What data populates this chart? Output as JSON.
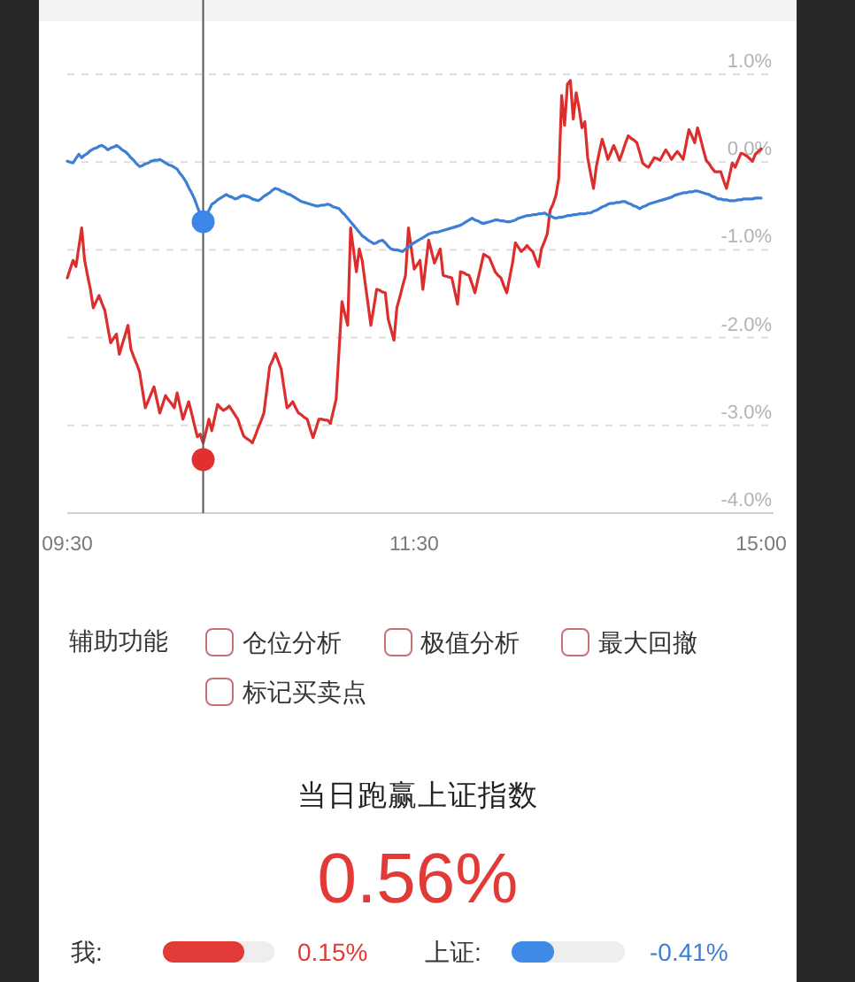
{
  "chart_data": [
    {
      "type": "line",
      "categories": [
        "09:30",
        null,
        null,
        null,
        null,
        null,
        null,
        null,
        null,
        null,
        null,
        null,
        null,
        null,
        null,
        null,
        null,
        null,
        null,
        null,
        null,
        null,
        null,
        null,
        null,
        null,
        null,
        null,
        null,
        null,
        null,
        null,
        null,
        null,
        null,
        null,
        null,
        null,
        null,
        null,
        null,
        null,
        null,
        null,
        null,
        null,
        null,
        null,
        null,
        null,
        null,
        null,
        null,
        null,
        null,
        null,
        null,
        null,
        null,
        null,
        null,
        null,
        null,
        null,
        null,
        null,
        null,
        null,
        null,
        null,
        null,
        null,
        null,
        null,
        null,
        null,
        null,
        null,
        null,
        null,
        null,
        null,
        null,
        null,
        null,
        null,
        null,
        null,
        null,
        null,
        null,
        null,
        null,
        null,
        null,
        null,
        null,
        null,
        null,
        null,
        null,
        null,
        null,
        null,
        null,
        null,
        null,
        null,
        null,
        null,
        null,
        null,
        null,
        null,
        null,
        null,
        null,
        null,
        null,
        null,
        "11:30",
        null,
        null,
        null,
        null,
        null,
        null,
        null,
        null,
        null,
        null,
        null,
        null,
        null,
        null,
        null,
        null,
        null,
        null,
        null,
        null,
        null,
        null,
        null,
        null,
        null,
        null,
        null,
        null,
        null,
        null,
        null,
        null,
        null,
        null,
        null,
        null,
        null,
        null,
        null,
        null,
        null,
        null,
        null,
        null,
        null,
        null,
        null,
        null,
        null,
        null,
        null,
        null,
        null,
        null,
        null,
        null,
        null,
        null,
        null,
        null,
        null,
        null,
        null,
        null,
        null,
        null,
        null,
        null,
        null,
        null,
        null,
        null,
        null,
        null,
        null,
        null,
        null,
        null,
        null,
        null,
        null,
        null,
        null,
        null,
        null,
        null,
        null,
        null,
        null,
        null,
        null,
        null,
        null,
        null,
        null,
        null,
        null,
        null,
        null,
        null,
        null,
        null,
        null,
        null,
        null,
        null,
        null,
        null,
        null,
        null,
        null,
        null,
        null,
        null,
        null,
        null,
        null,
        null,
        null,
        "15:00"
      ],
      "ylim": [
        -4,
        1
      ],
      "yticks": [
        {
          "value": 1,
          "label": "1.0%"
        },
        {
          "value": 0,
          "label": "0.0%"
        },
        {
          "value": -1,
          "label": "-1.0%"
        },
        {
          "value": -2,
          "label": "-2.0%"
        },
        {
          "value": -3,
          "label": "-3.0%"
        },
        {
          "value": -4,
          "label": "-4.0%"
        }
      ],
      "grid": "y",
      "series": [
        {
          "type": "line",
          "color": "#dd2e2e",
          "values": [
            -1.32,
            -1.22,
            -1.12,
            -1.19,
            -0.97,
            -0.75,
            -1.12,
            -1.29,
            -1.45,
            -1.66,
            -1.59,
            -1.52,
            -1.61,
            -1.69,
            -1.88,
            -2.06,
            -2.01,
            -1.96,
            -2.19,
            -2.08,
            -1.97,
            -1.86,
            -2.13,
            -2.22,
            -2.3,
            -2.39,
            -2.6,
            -2.8,
            -2.72,
            -2.64,
            -2.56,
            -2.71,
            -2.86,
            -2.76,
            -2.66,
            -2.71,
            -2.75,
            -2.8,
            -2.63,
            -2.78,
            -2.93,
            -2.83,
            -2.73,
            -2.86,
            -3.0,
            -3.13,
            -3.1,
            -3.2,
            -3.07,
            -2.93,
            -3.06,
            -2.91,
            -2.76,
            -2.8,
            -2.83,
            -2.81,
            -2.78,
            -2.83,
            -2.88,
            -2.93,
            -3.03,
            -3.12,
            -3.15,
            -3.17,
            -3.2,
            -3.12,
            -3.03,
            -2.95,
            -2.86,
            -2.6,
            -2.33,
            -2.26,
            -2.18,
            -2.27,
            -2.36,
            -2.58,
            -2.8,
            -2.77,
            -2.73,
            -2.8,
            -2.86,
            -2.88,
            -2.91,
            -2.93,
            -3.04,
            -3.14,
            -3.04,
            -2.93,
            -2.93,
            -2.94,
            -2.94,
            -2.98,
            -2.84,
            -2.7,
            -2.15,
            -1.59,
            -1.73,
            -1.86,
            -0.75,
            -1.0,
            -1.25,
            -0.99,
            -1.12,
            -1.37,
            -1.61,
            -1.86,
            -1.66,
            -1.45,
            -1.46,
            -1.48,
            -1.49,
            -1.79,
            -1.91,
            -2.03,
            -1.66,
            -1.54,
            -1.41,
            -1.29,
            -0.75,
            -0.99,
            -1.22,
            -1.17,
            -1.12,
            -1.45,
            -1.17,
            -0.89,
            -1.02,
            -1.15,
            -1.07,
            -0.99,
            -1.29,
            -1.3,
            -1.31,
            -1.32,
            -1.47,
            -1.62,
            -1.25,
            -1.26,
            -1.28,
            -1.29,
            -1.39,
            -1.49,
            -1.34,
            -1.2,
            -1.05,
            -1.07,
            -1.09,
            -1.17,
            -1.25,
            -1.29,
            -1.32,
            -1.41,
            -1.49,
            -1.32,
            -1.15,
            -0.92,
            -0.97,
            -1.02,
            -0.99,
            -0.95,
            -0.99,
            -1.02,
            -1.11,
            -1.19,
            -0.99,
            -0.91,
            -0.82,
            -0.55,
            -0.48,
            -0.38,
            -0.18,
            0.76,
            0.42,
            0.89,
            0.93,
            0.49,
            0.79,
            0.62,
            0.39,
            0.46,
            0.05,
            -0.13,
            -0.3,
            -0.05,
            0.11,
            0.26,
            0.15,
            0.03,
            0.11,
            0.19,
            0.11,
            0.02,
            0.11,
            0.21,
            0.3,
            0.27,
            0.25,
            0.22,
            0.11,
            -0.01,
            -0.04,
            -0.06,
            -0.01,
            0.05,
            0.04,
            0.02,
            0.08,
            0.14,
            0.09,
            0.03,
            0.08,
            0.12,
            0.08,
            0.03,
            0.2,
            0.37,
            0.3,
            0.22,
            0.39,
            0.27,
            0.14,
            0.02,
            -0.02,
            -0.07,
            -0.11,
            -0.11,
            -0.11,
            -0.21,
            -0.3,
            -0.16,
            -0.01,
            -0.06,
            0.02,
            0.1,
            0.09,
            0.07,
            0.04,
            0.01,
            0.09,
            0.12,
            0.15
          ]
        },
        {
          "type": "line",
          "color": "#3e7fd6",
          "values": [
            0.01,
            0.0,
            -0.01,
            0.04,
            0.09,
            0.05,
            0.08,
            0.1,
            0.13,
            0.15,
            0.16,
            0.18,
            0.19,
            0.17,
            0.14,
            0.16,
            0.17,
            0.19,
            0.17,
            0.14,
            0.12,
            0.09,
            0.05,
            0.02,
            -0.02,
            -0.05,
            -0.04,
            -0.02,
            -0.01,
            0.01,
            0.02,
            0.02,
            0.03,
            0.01,
            -0.01,
            -0.03,
            -0.04,
            -0.06,
            -0.08,
            -0.13,
            -0.17,
            -0.22,
            -0.29,
            -0.35,
            -0.42,
            -0.51,
            -0.59,
            -0.68,
            -0.61,
            -0.55,
            -0.48,
            -0.46,
            -0.43,
            -0.41,
            -0.39,
            -0.37,
            -0.39,
            -0.4,
            -0.42,
            -0.41,
            -0.39,
            -0.38,
            -0.39,
            -0.4,
            -0.42,
            -0.43,
            -0.44,
            -0.42,
            -0.39,
            -0.37,
            -0.35,
            -0.32,
            -0.3,
            -0.31,
            -0.33,
            -0.34,
            -0.36,
            -0.37,
            -0.39,
            -0.41,
            -0.43,
            -0.45,
            -0.46,
            -0.47,
            -0.48,
            -0.49,
            -0.5,
            -0.5,
            -0.49,
            -0.49,
            -0.48,
            -0.49,
            -0.51,
            -0.52,
            -0.53,
            -0.57,
            -0.6,
            -0.64,
            -0.68,
            -0.72,
            -0.76,
            -0.8,
            -0.84,
            -0.86,
            -0.89,
            -0.91,
            -0.93,
            -0.92,
            -0.9,
            -0.89,
            -0.92,
            -0.96,
            -0.99,
            -1.0,
            -1.0,
            -1.01,
            -1.02,
            -0.99,
            -0.97,
            -0.94,
            -0.92,
            -0.9,
            -0.88,
            -0.86,
            -0.84,
            -0.82,
            -0.81,
            -0.8,
            -0.8,
            -0.79,
            -0.78,
            -0.77,
            -0.76,
            -0.75,
            -0.74,
            -0.73,
            -0.72,
            -0.7,
            -0.68,
            -0.66,
            -0.64,
            -0.66,
            -0.67,
            -0.69,
            -0.7,
            -0.69,
            -0.68,
            -0.67,
            -0.66,
            -0.66,
            -0.67,
            -0.67,
            -0.68,
            -0.68,
            -0.67,
            -0.66,
            -0.64,
            -0.63,
            -0.62,
            -0.61,
            -0.61,
            -0.6,
            -0.6,
            -0.59,
            -0.59,
            -0.58,
            -0.6,
            -0.61,
            -0.63,
            -0.64,
            -0.63,
            -0.63,
            -0.62,
            -0.61,
            -0.61,
            -0.6,
            -0.6,
            -0.59,
            -0.59,
            -0.59,
            -0.58,
            -0.58,
            -0.56,
            -0.55,
            -0.53,
            -0.51,
            -0.5,
            -0.48,
            -0.47,
            -0.47,
            -0.46,
            -0.46,
            -0.45,
            -0.45,
            -0.47,
            -0.48,
            -0.5,
            -0.51,
            -0.53,
            -0.51,
            -0.5,
            -0.48,
            -0.47,
            -0.46,
            -0.45,
            -0.44,
            -0.43,
            -0.42,
            -0.41,
            -0.4,
            -0.38,
            -0.37,
            -0.36,
            -0.35,
            -0.35,
            -0.34,
            -0.34,
            -0.33,
            -0.33,
            -0.34,
            -0.35,
            -0.36,
            -0.37,
            -0.39,
            -0.4,
            -0.42,
            -0.42,
            -0.43,
            -0.43,
            -0.44,
            -0.44,
            -0.44,
            -0.43,
            -0.43,
            -0.42,
            -0.42,
            -0.42,
            -0.42,
            -0.41,
            -0.41,
            -0.41
          ]
        },
        {
          "type": "scatter",
          "color": "#e2302e",
          "values": [
            null,
            null,
            null,
            null,
            null,
            null,
            null,
            null,
            null,
            null,
            null,
            null,
            null,
            null,
            null,
            null,
            null,
            null,
            null,
            null,
            null,
            null,
            null,
            null,
            null,
            null,
            null,
            null,
            null,
            null,
            null,
            null,
            null,
            null,
            null,
            null,
            null,
            null,
            null,
            null,
            null,
            null,
            null,
            null,
            null,
            null,
            null,
            -3.39,
            null,
            null,
            null,
            null,
            null,
            null,
            null,
            null,
            null,
            null,
            null,
            null,
            null,
            null,
            null,
            null,
            null,
            null,
            null,
            null,
            null,
            null,
            null,
            null,
            null,
            null,
            null,
            null,
            null,
            null,
            null,
            null,
            null,
            null,
            null,
            null,
            null,
            null,
            null,
            null,
            null,
            null,
            null,
            null,
            null,
            null,
            null,
            null,
            null,
            null,
            null,
            null,
            null,
            null,
            null,
            null,
            null,
            null,
            null,
            null,
            null,
            null,
            null,
            null,
            null,
            null,
            null,
            null,
            null,
            null,
            null,
            null,
            null,
            null,
            null,
            null,
            null,
            null,
            null,
            null,
            null,
            null,
            null,
            null,
            null,
            null,
            null,
            null,
            null,
            null,
            null,
            null,
            null,
            null,
            null,
            null,
            null,
            null,
            null,
            null,
            null,
            null,
            null,
            null,
            null,
            null,
            null,
            null,
            null,
            null,
            null,
            null,
            null,
            null,
            null,
            null,
            null,
            null,
            null,
            null,
            null,
            null,
            null,
            null,
            null,
            null,
            null,
            null,
            null,
            null,
            null,
            null,
            null,
            null,
            null,
            null,
            null,
            null,
            null,
            null,
            null,
            null,
            null,
            null,
            null,
            null,
            null,
            null,
            null,
            null,
            null,
            null,
            null,
            null,
            null,
            null,
            null,
            null,
            null,
            null,
            null,
            null,
            null,
            null,
            null,
            null,
            null,
            null,
            null,
            null,
            null,
            null,
            null,
            null,
            null,
            null,
            null,
            null,
            null,
            null,
            null,
            null,
            null,
            null,
            null,
            null,
            null,
            null,
            null,
            null,
            null,
            null,
            null
          ]
        },
        {
          "type": "scatter",
          "color": "#3b86e8",
          "values": [
            null,
            null,
            null,
            null,
            null,
            null,
            null,
            null,
            null,
            null,
            null,
            null,
            null,
            null,
            null,
            null,
            null,
            null,
            null,
            null,
            null,
            null,
            null,
            null,
            null,
            null,
            null,
            null,
            null,
            null,
            null,
            null,
            null,
            null,
            null,
            null,
            null,
            null,
            null,
            null,
            null,
            null,
            null,
            null,
            null,
            null,
            null,
            -0.68,
            null,
            null,
            null,
            null,
            null,
            null,
            null,
            null,
            null,
            null,
            null,
            null,
            null,
            null,
            null,
            null,
            null,
            null,
            null,
            null,
            null,
            null,
            null,
            null,
            null,
            null,
            null,
            null,
            null,
            null,
            null,
            null,
            null,
            null,
            null,
            null,
            null,
            null,
            null,
            null,
            null,
            null,
            null,
            null,
            null,
            null,
            null,
            null,
            null,
            null,
            null,
            null,
            null,
            null,
            null,
            null,
            null,
            null,
            null,
            null,
            null,
            null,
            null,
            null,
            null,
            null,
            null,
            null,
            null,
            null,
            null,
            null,
            null,
            null,
            null,
            null,
            null,
            null,
            null,
            null,
            null,
            null,
            null,
            null,
            null,
            null,
            null,
            null,
            null,
            null,
            null,
            null,
            null,
            null,
            null,
            null,
            null,
            null,
            null,
            null,
            null,
            null,
            null,
            null,
            null,
            null,
            null,
            null,
            null,
            null,
            null,
            null,
            null,
            null,
            null,
            null,
            null,
            null,
            null,
            null,
            null,
            null,
            null,
            null,
            null,
            null,
            null,
            null,
            null,
            null,
            null,
            null,
            null,
            null,
            null,
            null,
            null,
            null,
            null,
            null,
            null,
            null,
            null,
            null,
            null,
            null,
            null,
            null,
            null,
            null,
            null,
            null,
            null,
            null,
            null,
            null,
            null,
            null,
            null,
            null,
            null,
            null,
            null,
            null,
            null,
            null,
            null,
            null,
            null,
            null,
            null,
            null,
            null,
            null,
            null,
            null,
            null,
            null,
            null,
            null,
            null,
            null,
            null,
            null,
            null,
            null,
            null,
            null,
            null,
            null,
            null,
            null,
            null
          ]
        }
      ]
    },
    {
      "type": "other",
      "title": "辅助功能",
      "annotations": [
        "仓位分析",
        "极值分析",
        "最大回撤",
        "标记买卖点"
      ]
    },
    {
      "type": "other",
      "title": "当日跑赢上证指数",
      "annotations": [
        "0.56%",
        "我:",
        "0.15%",
        "上证:",
        "-0.41%"
      ]
    }
  ]
}
